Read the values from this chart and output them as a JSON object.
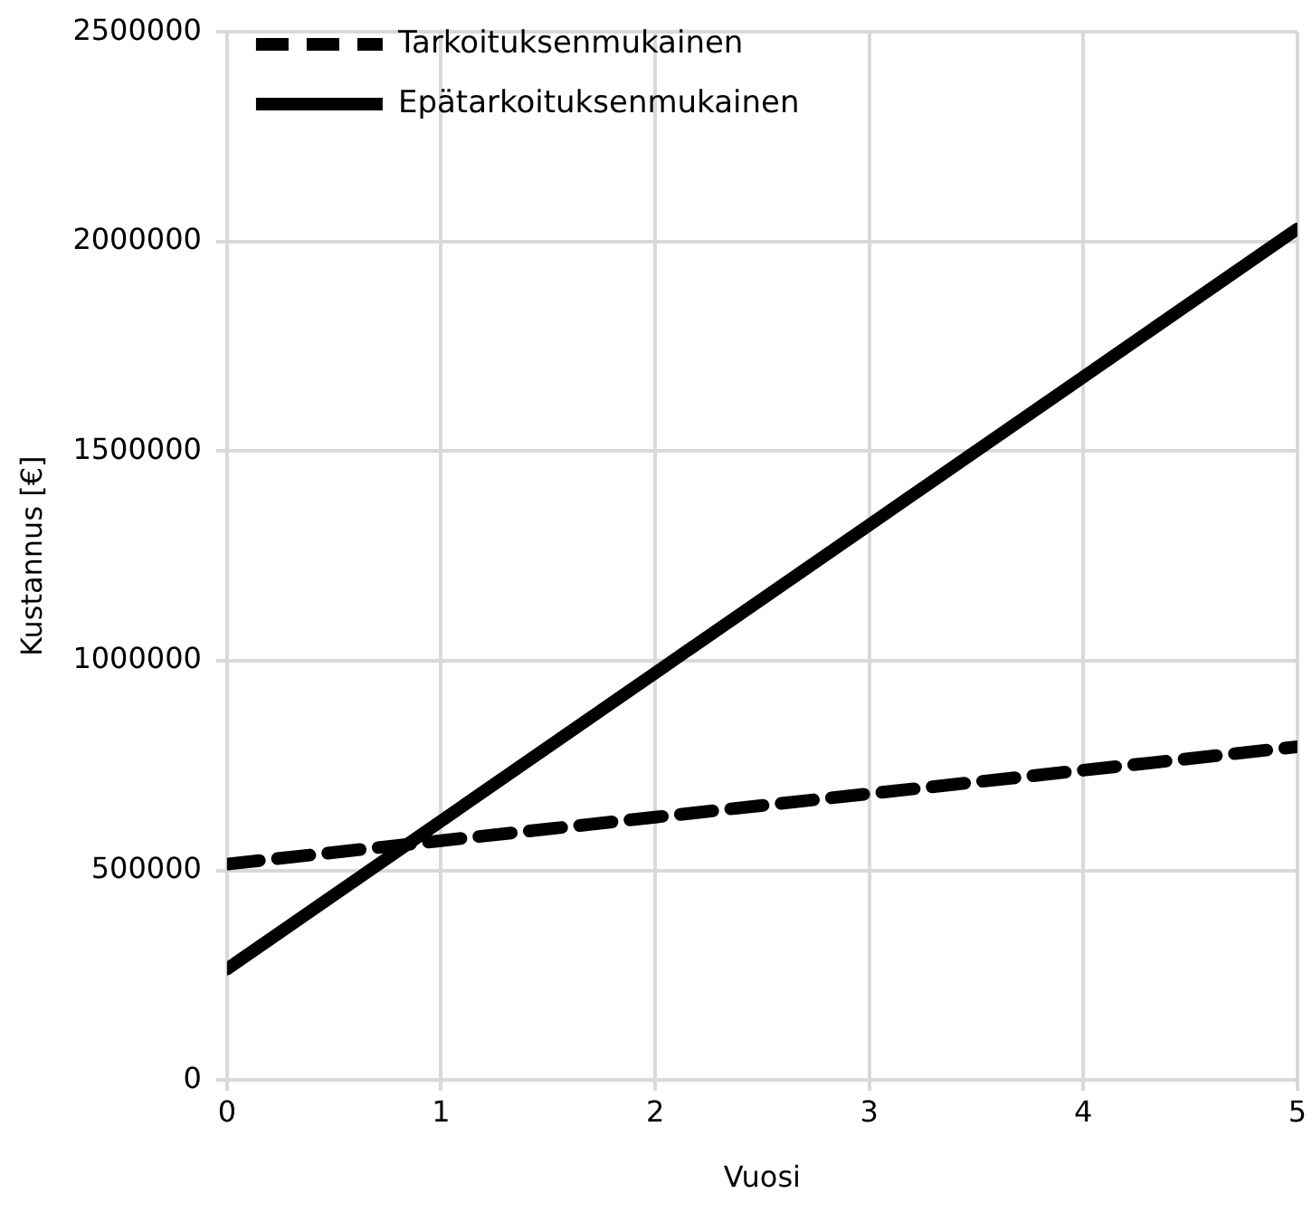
{
  "chart_data": {
    "type": "line",
    "xlabel": "Vuosi",
    "ylabel": "Kustannus [€]",
    "x": [
      0,
      1,
      2,
      3,
      4,
      5
    ],
    "series": [
      {
        "name": "Tarkoituksenmukainen",
        "color": "#000000",
        "line_style": "dashed",
        "values": [
          515000,
          571000,
          627000,
          683000,
          739000,
          795000
        ]
      },
      {
        "name": "Epätarkoituksenmukainen",
        "color": "#000000",
        "line_style": "solid",
        "values": [
          265000,
          618000,
          971000,
          1324000,
          1677000,
          2030000
        ]
      }
    ],
    "xlim": [
      0,
      5
    ],
    "xticks": [
      0,
      1,
      2,
      3,
      4,
      5
    ],
    "ylim": [
      0,
      2500000
    ],
    "yticks": [
      0,
      500000,
      1000000,
      1500000,
      2000000,
      2500000
    ],
    "grid": true,
    "legend": "top left",
    "marker": "none"
  }
}
